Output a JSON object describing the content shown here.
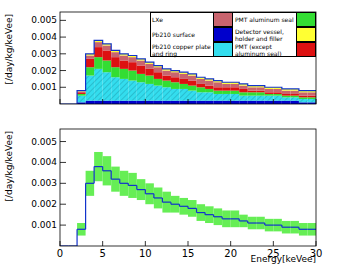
{
  "chart_data": [
    {
      "type": "bar",
      "stacked": true,
      "legend": "top-right",
      "tick_labels": "y",
      "y_label": "[/day/kg/keVee]",
      "bins": [
        0,
        1,
        2,
        3,
        4,
        5,
        6,
        7,
        8,
        9,
        10,
        11,
        12,
        13,
        14,
        15,
        16,
        17,
        18,
        19,
        20,
        21,
        22,
        23,
        24,
        25,
        26,
        27,
        28,
        29,
        30
      ],
      "xlim": [
        0,
        30
      ],
      "xticks": [
        0,
        5,
        10,
        15,
        20,
        25,
        30
      ],
      "ylim": [
        0,
        0.0055
      ],
      "yticks": [
        0.001,
        0.002,
        0.003,
        0.004,
        0.005
      ],
      "series": [
        {
          "name": "LXe",
          "color": "#c8646e",
          "values": [
            0,
            0,
            5e-05,
            0.0002,
            0.0003,
            0.0003,
            0.0003,
            0.0003,
            0.0003,
            0.0003,
            0.0003,
            0.0003,
            0.0003,
            0.0003,
            0.0003,
            0.0003,
            0.0003,
            0.0003,
            0.0003,
            0.0002,
            0.0002,
            0.0002,
            0.0002,
            0.0002,
            0.0002,
            0.0002,
            0.0002,
            0.0002,
            0.0002,
            0.0002
          ]
        },
        {
          "name": "PMT aluminum seal",
          "color": "#33dd33",
          "values": [
            0,
            0,
            0.0001,
            0.0005,
            0.0007,
            0.0007,
            0.0006,
            0.0006,
            0.0006,
            0.0005,
            0.0005,
            0.0004,
            0.0004,
            0.0004,
            0.0003,
            0.0003,
            0.0003,
            0.0002,
            0.0002,
            0.0002,
            0.0002,
            0.0002,
            0.0002,
            0.0002,
            0.0001,
            0.0001,
            0.0001,
            0.0001,
            0.0001,
            0.0001
          ]
        },
        {
          "name": "Pb210 surface",
          "color": "#0000cc",
          "values": [
            0,
            0,
            0.0001,
            0.0002,
            0.0002,
            0.0002,
            0.0002,
            0.0002,
            0.0002,
            0.0002,
            0.0002,
            0.0002,
            0.0002,
            0.0002,
            0.0002,
            0.0002,
            0.0002,
            0.0002,
            0.0002,
            0.0002,
            0.0002,
            0.0002,
            0.0002,
            0.0002,
            0.0002,
            0.0002,
            0.0002,
            0.0002,
            0.0001,
            0.0001
          ]
        },
        {
          "name": "Detector vessel, holder and filler",
          "color": "#ffff33",
          "values": [
            0,
            0,
            5e-05,
            0.0001,
            0.0001,
            0.0001,
            0.0001,
            0.0001,
            0.0001,
            0.0001,
            0.0001,
            0.0001,
            0.0001,
            0.0001,
            0.0001,
            0.0001,
            0.0001,
            0.0001,
            0.0001,
            0.0001,
            0.0001,
            0.0001,
            0.0001,
            0.0001,
            0.0001,
            0.0001,
            0.0001,
            0.0001,
            0.0001,
            0.0001
          ]
        },
        {
          "name": "Pb210 copper plate and ring",
          "color": "#33ddee",
          "values": [
            0,
            0,
            0.0004,
            0.0015,
            0.0019,
            0.0017,
            0.0014,
            0.0013,
            0.0012,
            0.0011,
            0.001,
            0.0009,
            0.0008,
            0.0007,
            0.0007,
            0.0006,
            0.0005,
            0.0005,
            0.0004,
            0.0004,
            0.0004,
            0.0003,
            0.0003,
            0.0003,
            0.0003,
            0.0003,
            0.0002,
            0.0002,
            0.0002,
            0.0002
          ]
        },
        {
          "name": "PMT (except aluminum seal)",
          "color": "#dd1111",
          "values": [
            0,
            0,
            0.0001,
            0.0005,
            0.0006,
            0.0006,
            0.0006,
            0.0005,
            0.0005,
            0.0005,
            0.0004,
            0.0004,
            0.0003,
            0.0003,
            0.0003,
            0.0003,
            0.0002,
            0.0002,
            0.0002,
            0.0002,
            0.0002,
            0.0002,
            0.0001,
            0.0001,
            0.0001,
            0.0001,
            0.0001,
            0.0001,
            0.0001,
            0.0001
          ]
        }
      ]
    },
    {
      "type": "line",
      "y_label": "[/day/kg/keVee]",
      "x_label": "Energy[keVee]",
      "bins": [
        0,
        1,
        2,
        3,
        4,
        5,
        6,
        7,
        8,
        9,
        10,
        11,
        12,
        13,
        14,
        15,
        16,
        17,
        18,
        19,
        20,
        21,
        22,
        23,
        24,
        25,
        26,
        27,
        28,
        29,
        30
      ],
      "xlim": [
        0,
        30
      ],
      "xticks": [
        0,
        5,
        10,
        15,
        20,
        25,
        30
      ],
      "ylim": [
        0,
        0.0056
      ],
      "yticks": [
        0.001,
        0.002,
        0.003,
        0.004,
        0.005
      ],
      "color": "#1133cc",
      "values": [
        0,
        0,
        0.0008,
        0.003,
        0.0038,
        0.0036,
        0.0032,
        0.003,
        0.0029,
        0.0027,
        0.0025,
        0.0023,
        0.0021,
        0.002,
        0.0019,
        0.0018,
        0.0016,
        0.0015,
        0.0014,
        0.0013,
        0.0013,
        0.0012,
        0.0011,
        0.0011,
        0.001,
        0.001,
        0.0009,
        0.0009,
        0.0008,
        0.0008
      ],
      "errors": [
        0,
        0,
        0.0003,
        0.0006,
        0.0007,
        0.0007,
        0.0006,
        0.0006,
        0.0006,
        0.0005,
        0.0005,
        0.0005,
        0.0005,
        0.0004,
        0.0004,
        0.0004,
        0.0004,
        0.0004,
        0.0004,
        0.0004,
        0.0004,
        0.0003,
        0.0003,
        0.0003,
        0.0003,
        0.0003,
        0.0003,
        0.0003,
        0.0003,
        0.0003
      ]
    }
  ]
}
